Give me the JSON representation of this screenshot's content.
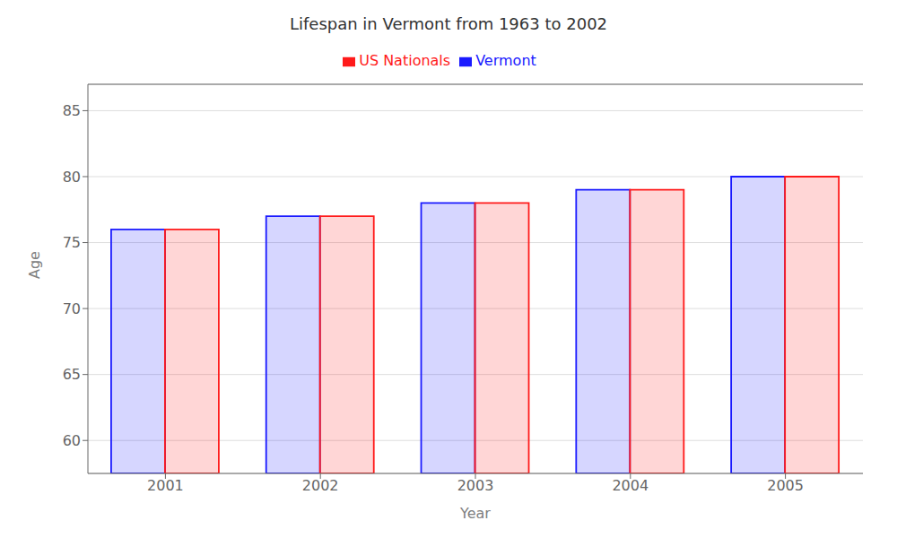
{
  "chart_data": {
    "type": "bar",
    "title": "Lifespan in Vermont from 1963 to 2002",
    "x_label": "Year",
    "y_label": "Age",
    "categories": [
      "2001",
      "2002",
      "2003",
      "2004",
      "2005"
    ],
    "series": [
      {
        "name": "Vermont",
        "color": "#1a1aff",
        "values": [
          76,
          77,
          78,
          79,
          80
        ]
      },
      {
        "name": "US Nationals",
        "color": "#ff1a1a",
        "values": [
          76,
          77,
          78,
          79,
          80
        ]
      }
    ],
    "ylim": [
      57.5,
      87
    ],
    "yticks": [
      60,
      65,
      70,
      75,
      80,
      85
    ],
    "grid": true,
    "legend": "top"
  }
}
